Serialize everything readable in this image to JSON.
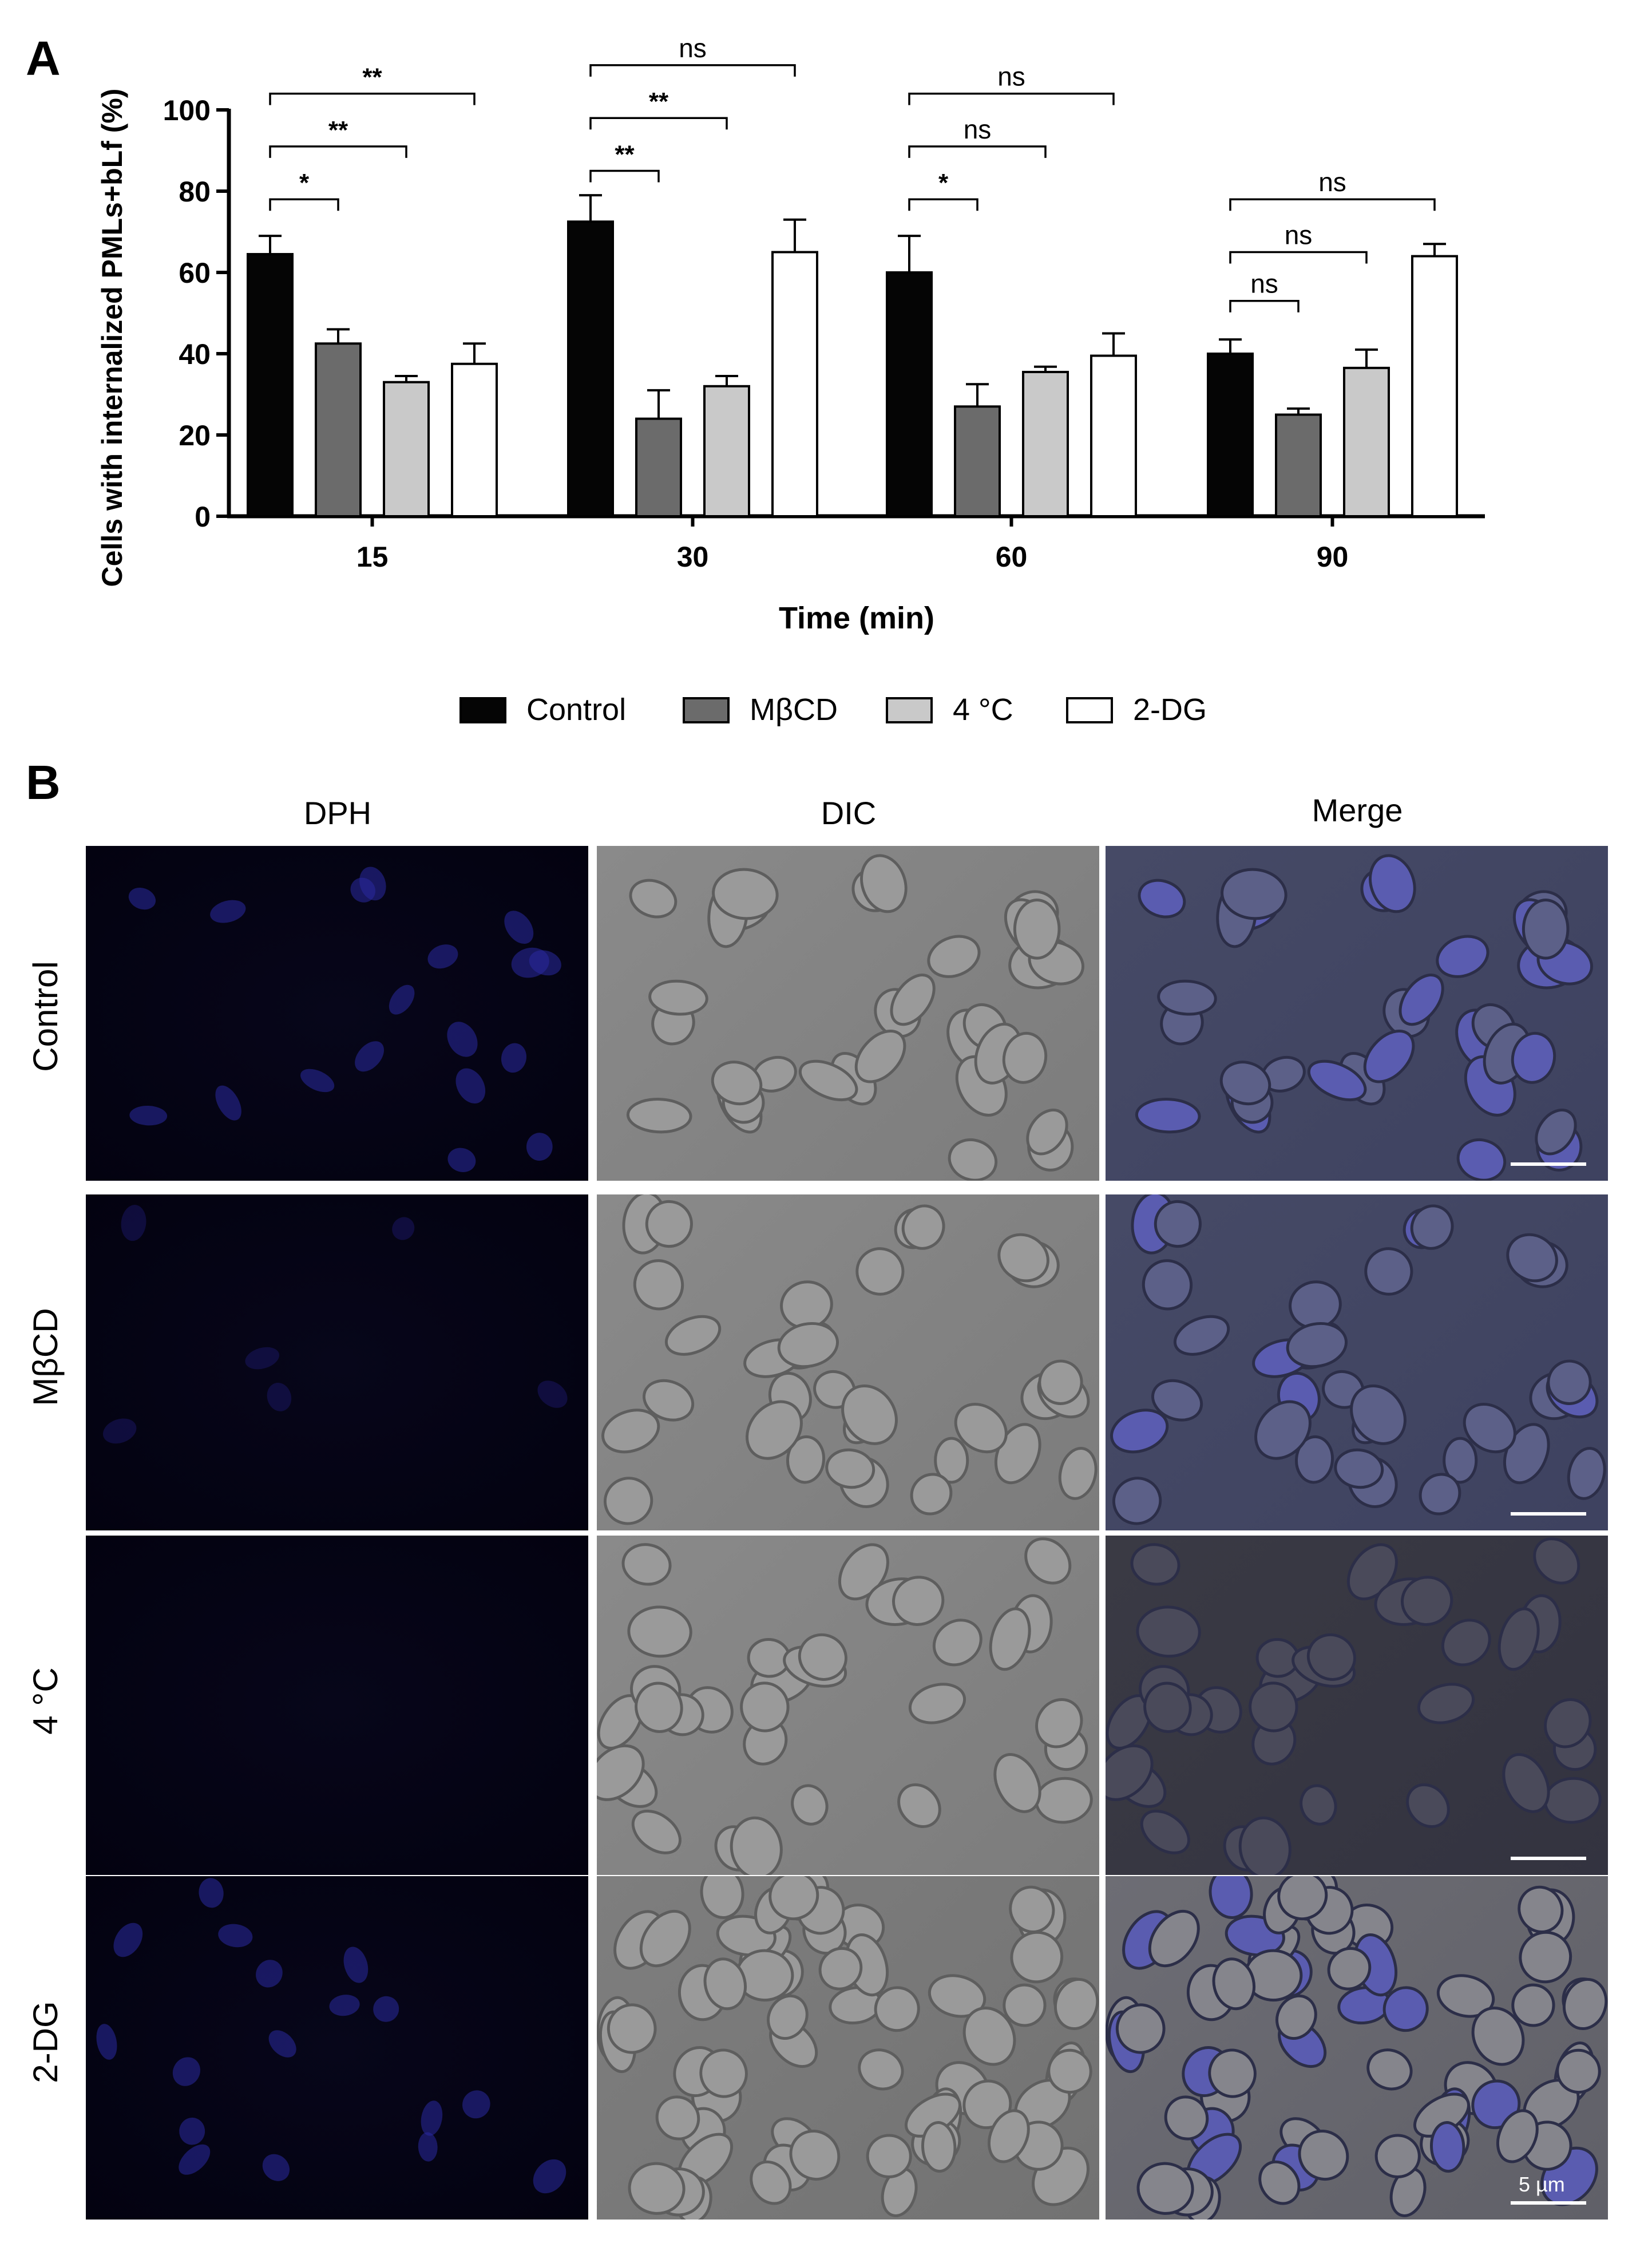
{
  "panel_a_label": "A",
  "panel_b_label": "B",
  "chart_data": {
    "type": "bar",
    "xlabel": "Time (min)",
    "ylabel": "Cells with internalized PMLs+bLf (%)",
    "ylim": [
      0,
      100
    ],
    "yticks": [
      0,
      20,
      40,
      60,
      80,
      100
    ],
    "categories": [
      "15",
      "30",
      "60",
      "90"
    ],
    "series": [
      {
        "name": "Control",
        "color": "#050505",
        "values": [
          64.5,
          72.5,
          60,
          40
        ],
        "errors": [
          4.5,
          6.5,
          9,
          3.5
        ]
      },
      {
        "name": "MβCD",
        "color": "#6b6b6b",
        "values": [
          42.5,
          24,
          27,
          25
        ],
        "errors": [
          3.5,
          7,
          5.5,
          1.5
        ]
      },
      {
        "name": "4 °C",
        "color": "#c9c9c9",
        "values": [
          33,
          32,
          35.5,
          36.5
        ],
        "errors": [
          1.5,
          2.5,
          1.3,
          4.5
        ]
      },
      {
        "name": "2-DG",
        "color": "#ffffff",
        "values": [
          37.5,
          65,
          39.5,
          64
        ],
        "errors": [
          5,
          8,
          5.5,
          3
        ]
      }
    ],
    "legend": {
      "position": "bottom",
      "entries": [
        "Control",
        "MβCD",
        "4 °C",
        "2-DG"
      ]
    },
    "significance": [
      {
        "group": 0,
        "compare": 1,
        "label": "*",
        "y": 78
      },
      {
        "group": 0,
        "compare": 2,
        "label": "**",
        "y": 91
      },
      {
        "group": 0,
        "compare": 3,
        "label": "**",
        "y": 104
      },
      {
        "group": 1,
        "compare": 1,
        "label": "**",
        "y": 85
      },
      {
        "group": 1,
        "compare": 2,
        "label": "**",
        "y": 98
      },
      {
        "group": 1,
        "compare": 3,
        "label": "ns",
        "y": 111
      },
      {
        "group": 2,
        "compare": 1,
        "label": "*",
        "y": 78
      },
      {
        "group": 2,
        "compare": 2,
        "label": "ns",
        "y": 91
      },
      {
        "group": 2,
        "compare": 3,
        "label": "ns",
        "y": 104
      },
      {
        "group": 3,
        "compare": 1,
        "label": "ns",
        "y": 53
      },
      {
        "group": 3,
        "compare": 2,
        "label": "ns",
        "y": 65
      },
      {
        "group": 3,
        "compare": 3,
        "label": "ns",
        "y": 78
      }
    ]
  },
  "microscopy": {
    "columns": [
      "DPH",
      "DIC",
      "Merge"
    ],
    "rows": [
      "Control",
      "MβCD",
      "4 °C",
      "2-DG"
    ],
    "scale_bar_label": "5 µm"
  }
}
